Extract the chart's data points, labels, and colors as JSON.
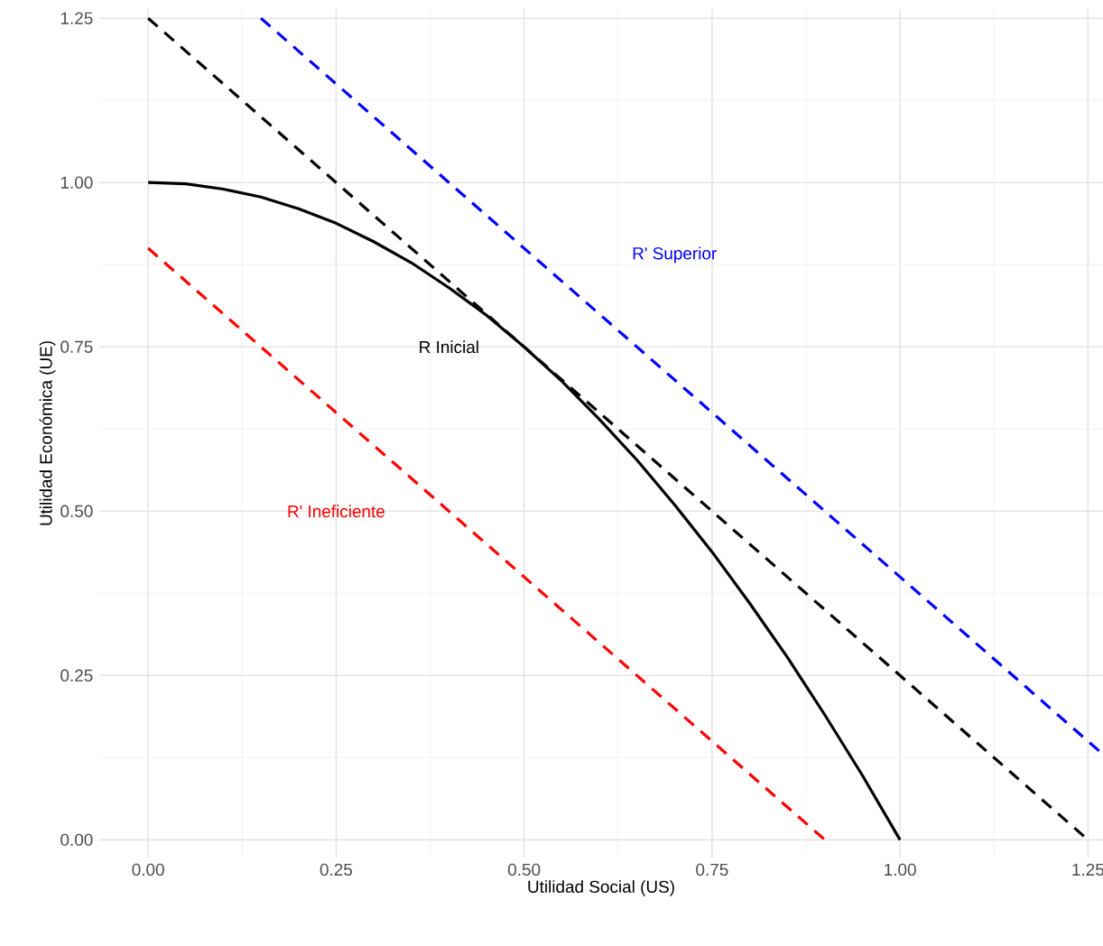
{
  "chart_data": {
    "type": "line",
    "xlabel": "Utilidad Social (US)",
    "ylabel": "Utilidad Económica (UE)",
    "xlim": [
      -0.065,
      1.27
    ],
    "ylim": [
      -0.027,
      1.264
    ],
    "xticks": [
      {
        "value": 0,
        "label": "0.00"
      },
      {
        "value": 0.25,
        "label": "0.25"
      },
      {
        "value": 0.5,
        "label": "0.50"
      },
      {
        "value": 0.75,
        "label": "0.75"
      },
      {
        "value": 1,
        "label": "1.00"
      },
      {
        "value": 1.25,
        "label": "1.25"
      }
    ],
    "yticks": [
      {
        "value": 0,
        "label": "0.00"
      },
      {
        "value": 0.25,
        "label": "0.25"
      },
      {
        "value": 0.5,
        "label": "0.50"
      },
      {
        "value": 0.75,
        "label": "0.75"
      },
      {
        "value": 1,
        "label": "1.00"
      },
      {
        "value": 1.25,
        "label": "1.25"
      }
    ],
    "grid": true,
    "marker": "none",
    "series": [
      {
        "name": "R Inicial",
        "color": "#000000",
        "line_style": "solid",
        "x": [
          0,
          0.05,
          0.1,
          0.15,
          0.2,
          0.25,
          0.3,
          0.35,
          0.4,
          0.45,
          0.5,
          0.55,
          0.6,
          0.65,
          0.7,
          0.75,
          0.8,
          0.85,
          0.9,
          0.95,
          1
        ],
        "values": [
          1,
          0.998,
          0.99,
          0.978,
          0.96,
          0.938,
          0.91,
          0.878,
          0.84,
          0.798,
          0.75,
          0.698,
          0.64,
          0.578,
          0.51,
          0.438,
          0.36,
          0.278,
          0.19,
          0.098,
          0
        ]
      },
      {
        "name": "R' Superior",
        "color": "#0000ff",
        "line_style": "dashed",
        "x": [
          0.15,
          1.27
        ],
        "values": [
          1.25,
          0.13
        ]
      },
      {
        "name": "R' Ineficiente",
        "color": "#ff0000",
        "line_style": "dashed",
        "x": [
          0,
          0.9
        ],
        "values": [
          0.9,
          0
        ]
      },
      {
        "color": "#000000",
        "line_style": "dashed",
        "x": [
          0,
          1.25
        ],
        "values": [
          1.25,
          0
        ]
      }
    ]
  }
}
